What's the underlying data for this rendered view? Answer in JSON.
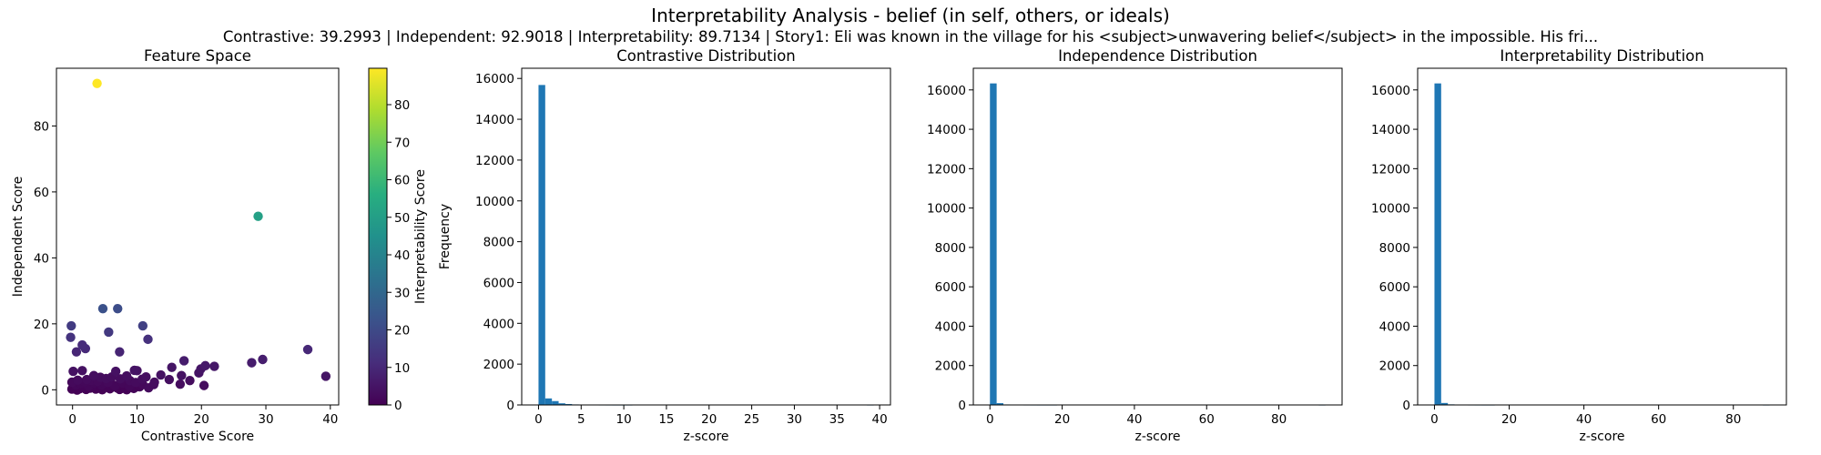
{
  "figure": {
    "title": "Interpretability Analysis - belief (in self, others, or ideals)",
    "subtitle": "Contrastive: 39.2993 | Independent: 92.9018 | Interpretability: 89.7134 | Story1: Eli was known in the village for his <subject>unwavering belief</subject> in the impossible. His fri..."
  },
  "chart_data": [
    {
      "type": "scatter",
      "title": "Feature Space",
      "xlabel": "Contrastive Score",
      "ylabel": "Independent Score",
      "xlim": [
        -2.5,
        41.3
      ],
      "ylim": [
        -4.6,
        97.5
      ],
      "xticks": [
        0,
        10,
        20,
        30,
        40
      ],
      "yticks": [
        0,
        20,
        40,
        60,
        80
      ],
      "colorbar": {
        "label": "Interpretability Score",
        "range": [
          0,
          89.7
        ],
        "ticks": [
          0,
          10,
          20,
          30,
          40,
          50,
          60,
          70,
          80
        ],
        "colormap": "viridis"
      },
      "points": [
        [
          3.8,
          92.9,
          89.7
        ],
        [
          28.8,
          52.6,
          50.5
        ],
        [
          4.7,
          24.6,
          22.0
        ],
        [
          7.0,
          24.6,
          21.0
        ],
        [
          10.9,
          19.4,
          17.0
        ],
        [
          -0.2,
          19.4,
          15.5
        ],
        [
          5.6,
          17.5,
          15.0
        ],
        [
          -0.3,
          15.9,
          13.0
        ],
        [
          11.7,
          15.3,
          12.5
        ],
        [
          1.5,
          13.6,
          11.0
        ],
        [
          2.0,
          12.5,
          10.5
        ],
        [
          0.6,
          11.5,
          9.5
        ],
        [
          7.3,
          11.5,
          9.0
        ],
        [
          36.5,
          12.2,
          10.0
        ],
        [
          29.5,
          9.2,
          7.5
        ],
        [
          27.8,
          8.2,
          7.0
        ],
        [
          39.3,
          4.1,
          5.0
        ],
        [
          17.3,
          8.8,
          7.0
        ],
        [
          20.6,
          7.3,
          6.0
        ],
        [
          19.9,
          6.3,
          5.0
        ],
        [
          22.0,
          7.1,
          5.5
        ],
        [
          19.6,
          5.1,
          4.5
        ],
        [
          15.4,
          6.8,
          5.0
        ],
        [
          16.9,
          4.3,
          4.0
        ],
        [
          15.0,
          3.1,
          3.5
        ],
        [
          18.2,
          2.8,
          3.0
        ],
        [
          16.7,
          1.7,
          3.0
        ],
        [
          20.4,
          1.3,
          3.0
        ],
        [
          13.7,
          4.5,
          4.0
        ],
        [
          12.7,
          2.3,
          3.0
        ],
        [
          11.8,
          0.6,
          2.5
        ],
        [
          12.6,
          1.6,
          2.5
        ],
        [
          9.6,
          5.9,
          4.5
        ],
        [
          10.0,
          5.8,
          4.0
        ],
        [
          8.4,
          4.2,
          3.5
        ],
        [
          10.8,
          3.2,
          3.0
        ],
        [
          11.4,
          3.9,
          3.5
        ],
        [
          6.7,
          5.6,
          4.0
        ],
        [
          0.1,
          5.6,
          4.0
        ],
        [
          1.5,
          5.8,
          4.0
        ],
        [
          3.3,
          4.3,
          3.5
        ],
        [
          4.3,
          3.8,
          3.0
        ],
        [
          5.2,
          3.4,
          3.0
        ],
        [
          6.1,
          3.9,
          3.0
        ],
        [
          7.4,
          3.3,
          3.0
        ],
        [
          8.9,
          2.8,
          2.5
        ],
        [
          9.8,
          2.2,
          2.5
        ],
        [
          10.9,
          1.6,
          2.0
        ],
        [
          2.2,
          3.1,
          2.5
        ],
        [
          0.8,
          2.9,
          2.5
        ],
        [
          -0.1,
          2.3,
          2.0
        ],
        [
          0.5,
          1.4,
          1.5
        ],
        [
          1.3,
          1.9,
          1.5
        ],
        [
          2.5,
          1.1,
          1.5
        ],
        [
          3.4,
          2.0,
          1.5
        ],
        [
          4.5,
          1.4,
          1.5
        ],
        [
          5.5,
          2.2,
          2.0
        ],
        [
          6.6,
          1.2,
          1.5
        ],
        [
          7.8,
          2.0,
          1.5
        ],
        [
          8.8,
          1.1,
          1.5
        ],
        [
          9.5,
          0.4,
          1.0
        ],
        [
          10.4,
          0.9,
          1.0
        ],
        [
          -0.1,
          0.2,
          0.5
        ],
        [
          0.3,
          0.6,
          0.5
        ],
        [
          0.7,
          -0.1,
          0.3
        ],
        [
          1.1,
          0.3,
          0.5
        ],
        [
          1.6,
          0.9,
          0.8
        ],
        [
          2.1,
          0.1,
          0.3
        ],
        [
          2.7,
          0.5,
          0.5
        ],
        [
          3.1,
          1.0,
          0.8
        ],
        [
          3.6,
          0.2,
          0.4
        ],
        [
          4.0,
          0.7,
          0.6
        ],
        [
          4.6,
          0.0,
          0.3
        ],
        [
          5.0,
          0.9,
          0.7
        ],
        [
          5.8,
          0.3,
          0.5
        ],
        [
          6.2,
          1.6,
          1.0
        ],
        [
          6.9,
          0.6,
          0.5
        ],
        [
          7.3,
          0.1,
          0.3
        ],
        [
          8.0,
          0.8,
          0.6
        ],
        [
          8.4,
          0.0,
          0.3
        ],
        [
          9.1,
          1.3,
          0.9
        ],
        [
          1.9,
          2.4,
          1.8
        ],
        [
          2.9,
          2.8,
          2.0
        ],
        [
          3.9,
          2.6,
          2.0
        ],
        [
          4.9,
          2.0,
          1.5
        ],
        [
          5.9,
          1.0,
          0.8
        ]
      ]
    },
    {
      "type": "bar",
      "title": "Contrastive Distribution",
      "xlabel": "z-score",
      "ylabel": "Frequency",
      "xlim": [
        -1.97,
        41.27
      ],
      "ylim": [
        0,
        16500
      ],
      "xticks": [
        0,
        5,
        10,
        15,
        20,
        25,
        30,
        35,
        40
      ],
      "yticks": [
        0,
        2000,
        4000,
        6000,
        8000,
        10000,
        12000,
        14000,
        16000
      ],
      "bin_start": 0,
      "bin_width": 0.786,
      "values": [
        15680,
        320,
        190,
        80,
        45,
        25,
        15,
        10,
        6,
        3,
        2,
        1,
        1,
        1,
        0,
        0,
        0,
        0,
        0,
        0,
        0,
        0,
        0,
        0,
        0,
        0,
        0,
        0,
        0,
        0,
        0,
        0,
        0,
        0,
        0,
        0,
        0,
        0,
        0,
        0,
        0,
        0,
        0,
        0,
        0,
        0,
        0,
        0,
        0,
        1
      ]
    },
    {
      "type": "bar",
      "title": "Independence Distribution",
      "xlabel": "z-score",
      "ylabel": "",
      "xlim": [
        -4.6,
        97.5
      ],
      "ylim": [
        0,
        17100
      ],
      "xticks": [
        0,
        20,
        40,
        60,
        80
      ],
      "yticks": [
        0,
        2000,
        4000,
        6000,
        8000,
        10000,
        12000,
        14000,
        16000
      ],
      "bin_start": 0,
      "bin_width": 1.858,
      "values": [
        16330,
        90,
        25,
        10,
        5,
        3,
        2,
        1,
        1,
        1,
        0,
        0,
        0,
        0,
        0,
        0,
        0,
        0,
        0,
        0,
        0,
        0,
        0,
        0,
        0,
        0,
        0,
        0,
        0,
        0,
        0,
        0,
        0,
        0,
        0,
        0,
        0,
        0,
        0,
        0,
        0,
        0,
        0,
        0,
        0,
        0,
        0,
        0,
        0,
        1
      ]
    },
    {
      "type": "bar",
      "title": "Interpretability Distribution",
      "xlabel": "z-score",
      "ylabel": "",
      "xlim": [
        -4.5,
        94.2
      ],
      "ylim": [
        0,
        17100
      ],
      "xticks": [
        0,
        20,
        40,
        60,
        80
      ],
      "yticks": [
        0,
        2000,
        4000,
        6000,
        8000,
        10000,
        12000,
        14000,
        16000
      ],
      "bin_start": 0,
      "bin_width": 1.794,
      "values": [
        16330,
        100,
        30,
        10,
        5,
        3,
        2,
        1,
        1,
        0,
        0,
        0,
        0,
        0,
        0,
        0,
        0,
        0,
        0,
        0,
        0,
        0,
        0,
        0,
        0,
        0,
        0,
        0,
        0,
        0,
        0,
        0,
        0,
        0,
        0,
        0,
        0,
        0,
        0,
        0,
        0,
        0,
        0,
        0,
        0,
        0,
        0,
        0,
        0,
        1
      ]
    }
  ],
  "colors": {
    "bar": "#1f77b4",
    "axis": "#000000"
  }
}
